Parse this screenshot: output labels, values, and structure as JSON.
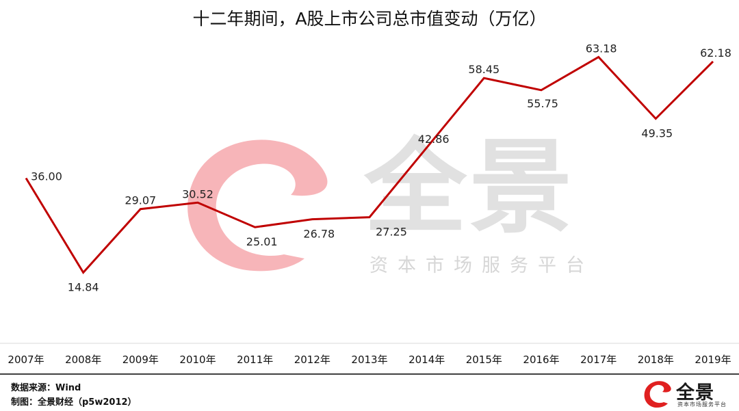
{
  "watermark": {
    "name": "全景",
    "tagline": "资本市场服务平台"
  },
  "chart_data": {
    "type": "line",
    "title": "十二年期间，A股上市公司总市值变动（万亿）",
    "categories": [
      "2007年",
      "2008年",
      "2009年",
      "2010年",
      "2011年",
      "2012年",
      "2013年",
      "2014年",
      "2015年",
      "2016年",
      "2017年",
      "2018年",
      "2019年"
    ],
    "series": [
      {
        "values": [
          36.0,
          14.84,
          29.07,
          30.52,
          25.01,
          26.78,
          27.25,
          42.86,
          58.45,
          55.75,
          63.18,
          49.35,
          62.18
        ],
        "labels": [
          "36.00",
          "14.84",
          "29.07",
          "30.52",
          "25.01",
          "26.78",
          "27.25",
          "42.86",
          "58.45",
          "55.75",
          "63.18",
          "49.35",
          "62.18"
        ]
      }
    ],
    "xlabel": "",
    "ylabel": "",
    "ylim": [
      10,
      66
    ],
    "grid": false,
    "line_color": "#c00000"
  },
  "footer": {
    "source": "数据来源：Wind",
    "credit": "制图：全景财经（p5w2012）"
  },
  "logo": {
    "name": "全景",
    "tagline": "资本市场服务平台",
    "color": "#e02020"
  }
}
